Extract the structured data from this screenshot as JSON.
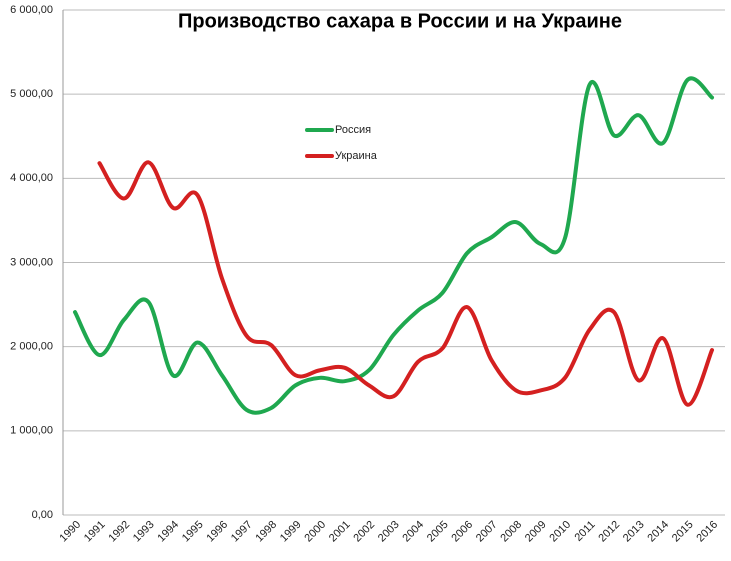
{
  "chart_data": {
    "type": "line",
    "title": "Производство сахара в России и на Украине",
    "categories": [
      "1990",
      "1991",
      "1992",
      "1993",
      "1994",
      "1995",
      "1996",
      "1997",
      "1998",
      "1999",
      "2000",
      "2001",
      "2002",
      "2003",
      "2004",
      "2005",
      "2006",
      "2007",
      "2008",
      "2009",
      "2010",
      "2011",
      "2012",
      "2013",
      "2014",
      "2015",
      "2016"
    ],
    "series": [
      {
        "name": "Россия",
        "color": "#1fa84f",
        "values": [
          2410,
          1900,
          2320,
          2530,
          1660,
          2050,
          1660,
          1250,
          1270,
          1540,
          1630,
          1590,
          1720,
          2140,
          2430,
          2640,
          3110,
          3300,
          3480,
          3220,
          3290,
          5110,
          4510,
          4750,
          4420,
          5170,
          4960
        ]
      },
      {
        "name": "Украина",
        "color": "#d42020",
        "values": [
          null,
          4180,
          3760,
          4190,
          3650,
          3800,
          2810,
          2130,
          2020,
          1660,
          1720,
          1750,
          1540,
          1410,
          1820,
          1980,
          2470,
          1840,
          1480,
          1480,
          1630,
          2200,
          2410,
          1600,
          2100,
          1310,
          1960
        ]
      }
    ],
    "ylim": [
      0,
      6000
    ],
    "yticks": [
      {
        "value": 0,
        "label": "0,00"
      },
      {
        "value": 1000,
        "label": "1 000,00"
      },
      {
        "value": 2000,
        "label": "2 000,00"
      },
      {
        "value": 3000,
        "label": "3 000,00"
      },
      {
        "value": 4000,
        "label": "4 000,00"
      },
      {
        "value": 5000,
        "label": "5 000,00"
      },
      {
        "value": 6000,
        "label": "6 000,00"
      }
    ],
    "grid": true
  }
}
